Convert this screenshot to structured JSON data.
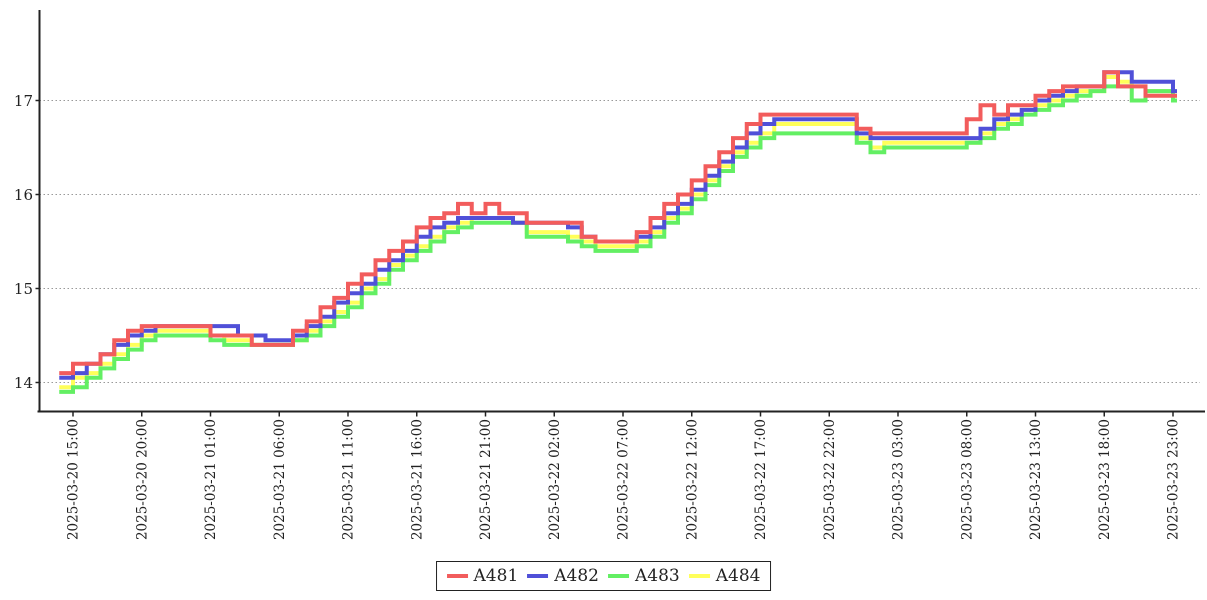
{
  "chart_data": {
    "type": "line",
    "step": true,
    "title": "",
    "x_axis": {
      "start_point_label": "2025-03-20 14:00",
      "points_are_hourly": true,
      "tick_interval_hours": 5,
      "first_tick_point_index": 1,
      "tick_labels": [
        "2025-03-20 15:00",
        "2025-03-20 20:00",
        "2025-03-21 01:00",
        "2025-03-21 06:00",
        "2025-03-21 11:00",
        "2025-03-21 16:00",
        "2025-03-21 21:00",
        "2025-03-22 02:00",
        "2025-03-22 07:00",
        "2025-03-22 12:00",
        "2025-03-22 17:00",
        "2025-03-22 22:00",
        "2025-03-23 03:00",
        "2025-03-23 08:00",
        "2025-03-23 13:00",
        "2025-03-23 18:00",
        "2025-03-23 23:00"
      ]
    },
    "y_axis": {
      "ticks": [
        14,
        15,
        16,
        17
      ],
      "range": [
        13.68,
        17.96
      ],
      "grid": true
    },
    "legend": {
      "position": "bottom-center",
      "border": true
    },
    "series": [
      {
        "name": "A481",
        "color": "#f25c5c",
        "values": [
          14.1,
          14.2,
          14.2,
          14.3,
          14.45,
          14.55,
          14.6,
          14.6,
          14.6,
          14.6,
          14.6,
          14.5,
          14.5,
          14.5,
          14.4,
          14.4,
          14.4,
          14.55,
          14.65,
          14.8,
          14.9,
          15.05,
          15.15,
          15.3,
          15.4,
          15.5,
          15.65,
          15.75,
          15.8,
          15.9,
          15.8,
          15.9,
          15.8,
          15.8,
          15.7,
          15.7,
          15.7,
          15.7,
          15.55,
          15.5,
          15.5,
          15.5,
          15.6,
          15.75,
          15.9,
          16.0,
          16.15,
          16.3,
          16.45,
          16.6,
          16.75,
          16.85,
          16.85,
          16.85,
          16.85,
          16.85,
          16.85,
          16.85,
          16.7,
          16.65,
          16.65,
          16.65,
          16.65,
          16.65,
          16.65,
          16.65,
          16.8,
          16.95,
          16.85,
          16.95,
          16.95,
          17.05,
          17.1,
          17.15,
          17.15,
          17.15,
          17.3,
          17.15,
          17.15,
          17.05,
          17.05,
          17.05
        ]
      },
      {
        "name": "A482",
        "color": "#5050d8",
        "values": [
          14.05,
          14.1,
          14.2,
          14.3,
          14.4,
          14.5,
          14.55,
          14.6,
          14.6,
          14.6,
          14.6,
          14.6,
          14.6,
          14.5,
          14.5,
          14.45,
          14.45,
          14.5,
          14.6,
          14.7,
          14.85,
          14.95,
          15.05,
          15.2,
          15.3,
          15.4,
          15.55,
          15.65,
          15.7,
          15.75,
          15.75,
          15.75,
          15.75,
          15.7,
          15.7,
          15.7,
          15.7,
          15.65,
          15.55,
          15.5,
          15.5,
          15.5,
          15.55,
          15.65,
          15.8,
          15.9,
          16.05,
          16.2,
          16.35,
          16.5,
          16.65,
          16.75,
          16.8,
          16.8,
          16.8,
          16.8,
          16.8,
          16.8,
          16.65,
          16.6,
          16.6,
          16.6,
          16.6,
          16.6,
          16.6,
          16.6,
          16.6,
          16.7,
          16.8,
          16.85,
          16.9,
          17.0,
          17.05,
          17.1,
          17.15,
          17.15,
          17.3,
          17.3,
          17.2,
          17.2,
          17.2,
          17.1
        ]
      },
      {
        "name": "A483",
        "color": "#63ef63",
        "values": [
          13.9,
          13.95,
          14.05,
          14.15,
          14.25,
          14.35,
          14.45,
          14.5,
          14.5,
          14.5,
          14.5,
          14.45,
          14.4,
          14.4,
          14.4,
          14.4,
          14.4,
          14.45,
          14.5,
          14.6,
          14.7,
          14.8,
          14.95,
          15.05,
          15.2,
          15.3,
          15.4,
          15.5,
          15.6,
          15.65,
          15.7,
          15.7,
          15.7,
          15.7,
          15.55,
          15.55,
          15.55,
          15.5,
          15.45,
          15.4,
          15.4,
          15.4,
          15.45,
          15.55,
          15.7,
          15.8,
          15.95,
          16.1,
          16.25,
          16.4,
          16.5,
          16.6,
          16.65,
          16.65,
          16.65,
          16.65,
          16.65,
          16.65,
          16.55,
          16.45,
          16.5,
          16.5,
          16.5,
          16.5,
          16.5,
          16.5,
          16.55,
          16.6,
          16.7,
          16.75,
          16.85,
          16.9,
          16.95,
          17.0,
          17.05,
          17.1,
          17.15,
          17.15,
          17.0,
          17.1,
          17.1,
          17.0
        ]
      },
      {
        "name": "A484",
        "color": "#ffff5a",
        "values": [
          13.95,
          14.05,
          14.1,
          14.2,
          14.3,
          14.4,
          14.5,
          14.55,
          14.55,
          14.55,
          14.55,
          14.5,
          14.45,
          14.45,
          14.4,
          14.4,
          14.4,
          14.45,
          14.55,
          14.65,
          14.75,
          14.85,
          15.0,
          15.1,
          15.25,
          15.35,
          15.45,
          15.55,
          15.65,
          15.7,
          15.75,
          15.75,
          15.75,
          15.7,
          15.6,
          15.6,
          15.6,
          15.55,
          15.5,
          15.45,
          15.45,
          15.45,
          15.5,
          15.6,
          15.75,
          15.85,
          16.0,
          16.15,
          16.3,
          16.45,
          16.55,
          16.65,
          16.75,
          16.75,
          16.75,
          16.75,
          16.75,
          16.75,
          16.6,
          16.5,
          16.55,
          16.55,
          16.55,
          16.55,
          16.55,
          16.55,
          16.55,
          16.65,
          16.75,
          16.8,
          16.9,
          16.95,
          17.0,
          17.05,
          17.1,
          17.1,
          17.25,
          17.2,
          17.15,
          17.1,
          17.1,
          17.05
        ]
      }
    ]
  },
  "styles": {
    "axis_color": "#222222",
    "grid_color": "#999999",
    "label_color": "#222222",
    "background": "#ffffff"
  }
}
